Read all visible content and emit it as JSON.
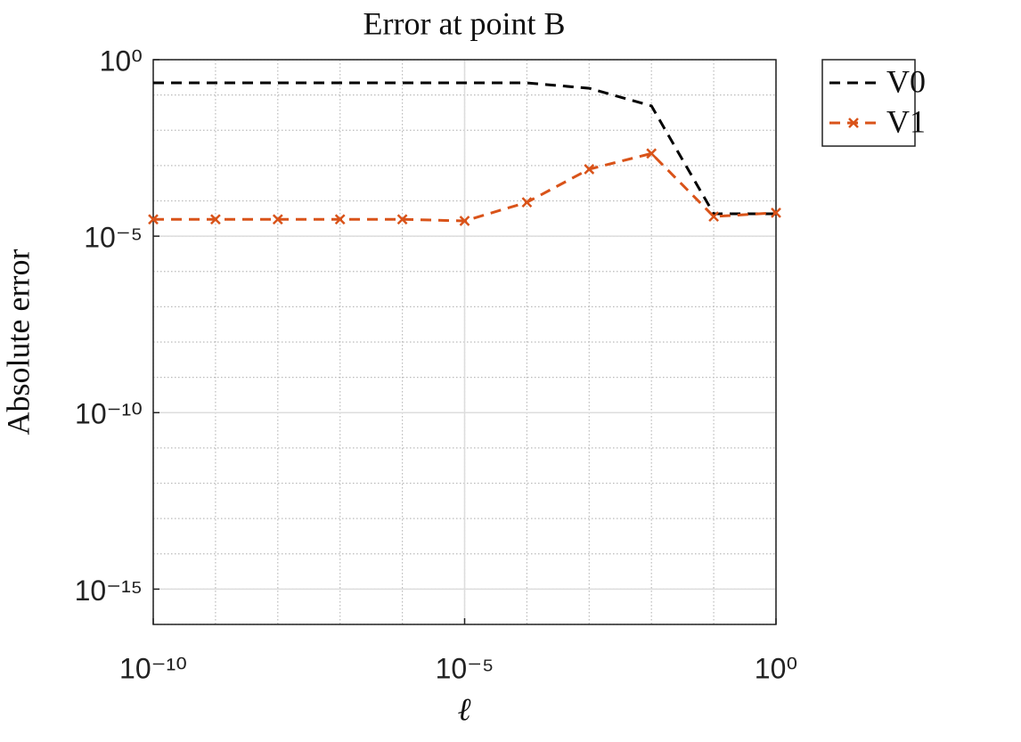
{
  "chart_data": {
    "type": "line",
    "title": "Error at point B",
    "xlabel": "ℓ",
    "ylabel": "Absolute error",
    "x": [
      1e-10,
      1e-09,
      1e-08,
      1e-07,
      1e-06,
      1e-05,
      0.0001,
      0.001,
      0.01,
      0.1,
      1
    ],
    "series": [
      {
        "name": "V0",
        "color": "#000000",
        "dash": true,
        "marker": null,
        "values": [
          0.22,
          0.22,
          0.22,
          0.22,
          0.22,
          0.22,
          0.22,
          0.155,
          0.049,
          4.3e-05,
          4.3e-05
        ]
      },
      {
        "name": "V1",
        "color": "#d95319",
        "dash": true,
        "marker": "x",
        "values": [
          3e-05,
          3e-05,
          3e-05,
          3e-05,
          3e-05,
          2.7e-05,
          9.1e-05,
          0.00079,
          0.0022,
          3.6e-05,
          4.6e-05
        ]
      }
    ],
    "xscale": "log",
    "yscale": "log",
    "xlim": [
      1e-10,
      1
    ],
    "ylim": [
      1e-16,
      1
    ],
    "xticks": [
      {
        "value": 1e-10,
        "label": "10⁻¹⁰"
      },
      {
        "value": 1e-05,
        "label": "10⁻⁵"
      },
      {
        "value": 1,
        "label": "10⁰"
      }
    ],
    "yticks": [
      {
        "value": 1e-15,
        "label": "10⁻¹⁵"
      },
      {
        "value": 1e-10,
        "label": "10⁻¹⁰"
      },
      {
        "value": 1e-05,
        "label": "10⁻⁵"
      },
      {
        "value": 1,
        "label": "10⁰"
      }
    ],
    "grid": true,
    "minor_grid": true,
    "legend": "outside-top-right"
  }
}
